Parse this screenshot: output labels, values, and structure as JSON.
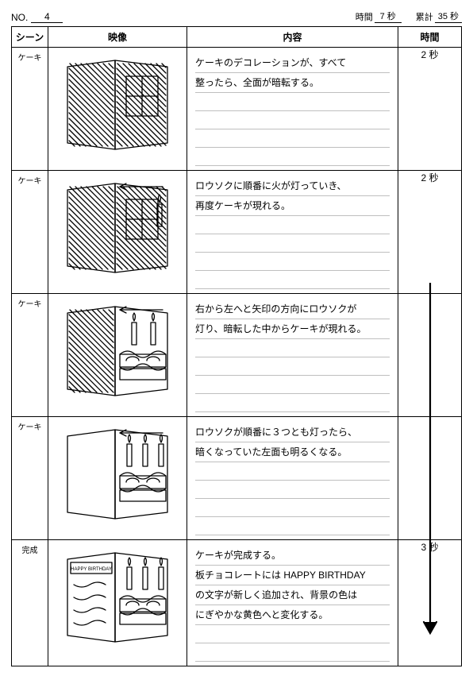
{
  "header": {
    "no_label": "NO.",
    "no_value": "4",
    "time_label": "時間",
    "time_value": "7 秒",
    "cum_label": "累計",
    "cum_value": "35 秒"
  },
  "columns": {
    "scene": "シーン",
    "image": "映像",
    "content": "内容",
    "time": "時間"
  },
  "rows": [
    {
      "scene": "ケーキ",
      "lines": [
        "ケーキのデコレーションが、すべて",
        "整ったら、全面が暗転する。",
        "",
        "",
        "",
        ""
      ],
      "time": "2 秒",
      "sketch": "hatch-full"
    },
    {
      "scene": "ケーキ",
      "lines": [
        "ロウソクに順番に火が灯っていき、",
        "再度ケーキが現れる。",
        "",
        "",
        "",
        ""
      ],
      "time": "2 秒",
      "sketch": "hatch-candle-right"
    },
    {
      "scene": "ケーキ",
      "lines": [
        "右から左へと矢印の方向にロウソクが",
        "灯り、暗転した中からケーキが現れる。",
        "",
        "",
        "",
        ""
      ],
      "time": "",
      "sketch": "hatch-left-cake-right"
    },
    {
      "scene": "ケーキ",
      "lines": [
        "ロウソクが順番に３つとも灯ったら、",
        "暗くなっていた左面も明るくなる。",
        "",
        "",
        "",
        ""
      ],
      "time": "",
      "sketch": "cake-candles"
    },
    {
      "scene": "完成",
      "lines": [
        "ケーキが完成する。",
        "板チョコレートには HAPPY BIRTHDAY",
        "の文字が新しく追加され、背景の色は",
        "にぎやかな黄色へと変化する。",
        "",
        ""
      ],
      "time": "3 秒",
      "sketch": "cake-birthday"
    }
  ],
  "arrow": {
    "from_row": 1,
    "to_row": 3
  }
}
